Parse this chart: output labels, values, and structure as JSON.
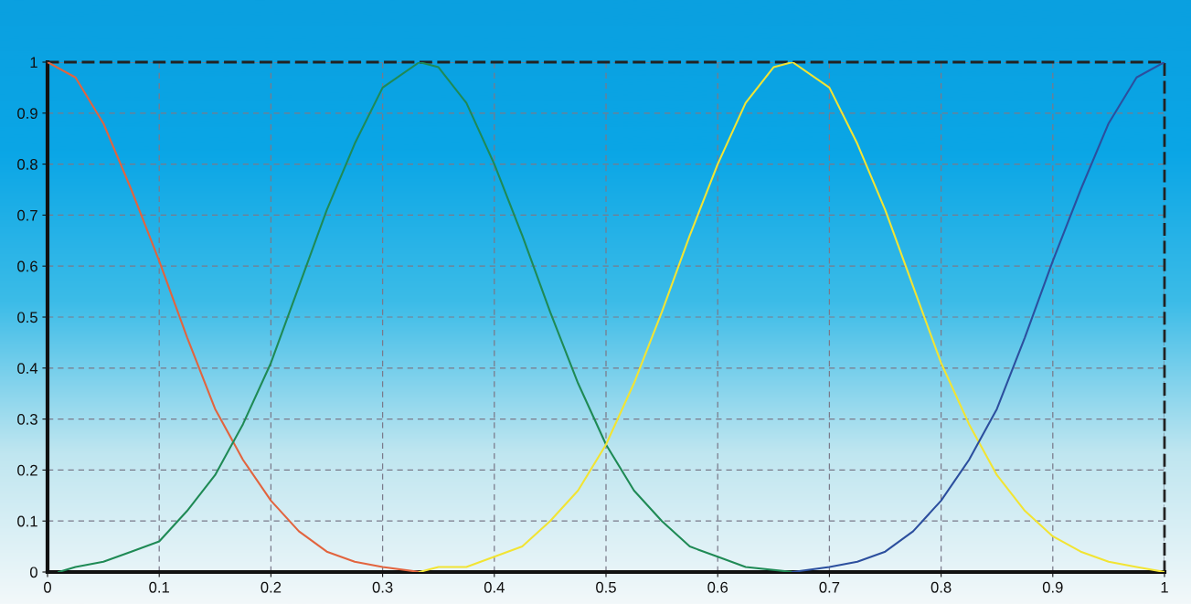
{
  "chart_data": {
    "type": "line",
    "xlim": [
      0,
      1
    ],
    "ylim": [
      0,
      1
    ],
    "xticks": [
      0,
      0.1,
      0.2,
      0.3,
      0.4,
      0.5,
      0.6,
      0.7,
      0.8,
      0.9,
      1
    ],
    "yticks": [
      0,
      0.1,
      0.2,
      0.3,
      0.4,
      0.5,
      0.6,
      0.7,
      0.8,
      0.9,
      1
    ],
    "grid": true,
    "marker": "none",
    "line_style": "solid",
    "series": [
      {
        "color": "#e2643e",
        "x": [
          0,
          0.025,
          0.05,
          0.075,
          0.1,
          0.125,
          0.15,
          0.175,
          0.2,
          0.225,
          0.25,
          0.275,
          0.3,
          0.333
        ],
        "values": [
          1,
          0.97,
          0.88,
          0.75,
          0.61,
          0.46,
          0.32,
          0.22,
          0.14,
          0.08,
          0.04,
          0.02,
          0.01,
          0.0
        ]
      },
      {
        "color": "#1f8a55",
        "x": [
          0.01,
          0.025,
          0.05,
          0.075,
          0.1,
          0.125,
          0.15,
          0.175,
          0.2,
          0.225,
          0.25,
          0.275,
          0.3,
          0.333,
          0.35,
          0.375,
          0.4,
          0.425,
          0.45,
          0.475,
          0.5,
          0.525,
          0.55,
          0.575,
          0.6,
          0.625,
          0.667
        ],
        "values": [
          0.0,
          0.01,
          0.02,
          0.04,
          0.06,
          0.12,
          0.19,
          0.29,
          0.41,
          0.56,
          0.71,
          0.84,
          0.95,
          1.0,
          0.99,
          0.92,
          0.8,
          0.66,
          0.51,
          0.37,
          0.25,
          0.16,
          0.1,
          0.05,
          0.03,
          0.01,
          0.0
        ]
      },
      {
        "color": "#f2e433",
        "x": [
          0.333,
          0.35,
          0.375,
          0.4,
          0.425,
          0.45,
          0.475,
          0.5,
          0.525,
          0.55,
          0.575,
          0.6,
          0.625,
          0.65,
          0.667,
          0.7,
          0.725,
          0.75,
          0.775,
          0.8,
          0.825,
          0.85,
          0.875,
          0.9,
          0.925,
          0.95,
          0.975,
          1
        ],
        "values": [
          0.0,
          0.01,
          0.01,
          0.03,
          0.05,
          0.1,
          0.16,
          0.25,
          0.37,
          0.51,
          0.66,
          0.8,
          0.92,
          0.99,
          1.0,
          0.95,
          0.84,
          0.71,
          0.56,
          0.41,
          0.29,
          0.19,
          0.12,
          0.07,
          0.04,
          0.02,
          0.01,
          0.0
        ]
      },
      {
        "color": "#2c4f9e",
        "x": [
          0.667,
          0.7,
          0.725,
          0.75,
          0.775,
          0.8,
          0.825,
          0.85,
          0.875,
          0.9,
          0.925,
          0.95,
          0.975,
          1
        ],
        "values": [
          0.0,
          0.01,
          0.02,
          0.04,
          0.08,
          0.14,
          0.22,
          0.32,
          0.46,
          0.61,
          0.75,
          0.88,
          0.97,
          1.0
        ]
      }
    ]
  }
}
